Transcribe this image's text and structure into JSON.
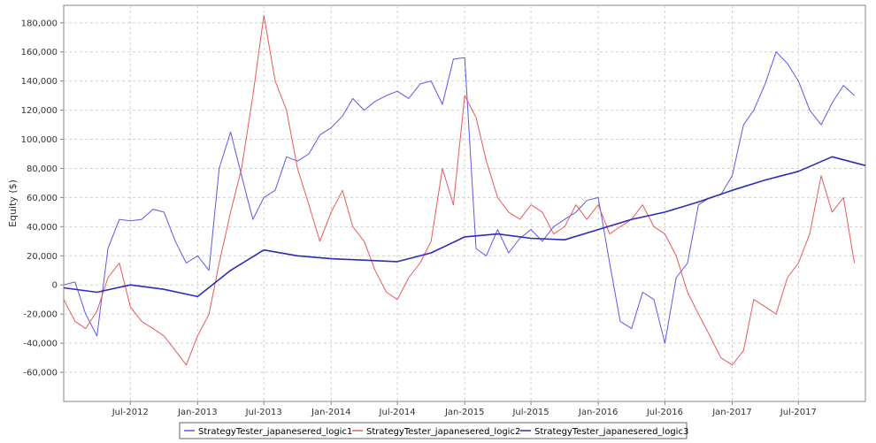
{
  "chart_data": {
    "type": "line",
    "title": "",
    "xlabel": "",
    "ylabel": "Equity ($)",
    "x_tick_labels": [
      "Jul-2012",
      "Jan-2013",
      "Jul-2013",
      "Jan-2014",
      "Jul-2014",
      "Jan-2015",
      "Jul-2015",
      "Jan-2016",
      "Jul-2016",
      "Jan-2017",
      "Jul-2017"
    ],
    "x_tick_dates": [
      "2012-07-01",
      "2013-01-01",
      "2013-07-01",
      "2014-01-01",
      "2014-07-01",
      "2015-01-01",
      "2015-07-01",
      "2016-01-01",
      "2016-07-01",
      "2017-01-01",
      "2017-07-01"
    ],
    "xlim": [
      "2012-01-01",
      "2017-12-31"
    ],
    "y_tick_labels": [
      "-60,000",
      "-40,000",
      "-20,000",
      "0",
      "20,000",
      "40,000",
      "60,000",
      "80,000",
      "100,000",
      "120,000",
      "140,000",
      "160,000",
      "180,000"
    ],
    "y_ticks": [
      -60000,
      -40000,
      -20000,
      0,
      20000,
      40000,
      60000,
      80000,
      100000,
      120000,
      140000,
      160000,
      180000
    ],
    "ylim": [
      -80000,
      192000
    ],
    "grid": true,
    "legend_position": "bottom",
    "series": [
      {
        "name": "StrategyTester_japanesered_logic1",
        "color": "#5a5ae6",
        "x": [
          "2012-01-01",
          "2012-02-01",
          "2012-03-01",
          "2012-04-01",
          "2012-05-01",
          "2012-06-01",
          "2012-07-01",
          "2012-08-01",
          "2012-09-01",
          "2012-10-01",
          "2012-11-01",
          "2012-12-01",
          "2013-01-01",
          "2013-02-01",
          "2013-03-01",
          "2013-04-01",
          "2013-05-01",
          "2013-06-01",
          "2013-07-01",
          "2013-08-01",
          "2013-09-01",
          "2013-10-01",
          "2013-11-01",
          "2013-12-01",
          "2014-01-01",
          "2014-02-01",
          "2014-03-01",
          "2014-04-01",
          "2014-05-01",
          "2014-06-01",
          "2014-07-01",
          "2014-08-01",
          "2014-09-01",
          "2014-10-01",
          "2014-11-01",
          "2014-12-01",
          "2015-01-01",
          "2015-02-01",
          "2015-03-01",
          "2015-04-01",
          "2015-05-01",
          "2015-06-01",
          "2015-07-01",
          "2015-08-01",
          "2015-09-01",
          "2015-10-01",
          "2015-11-01",
          "2015-12-01",
          "2016-01-01",
          "2016-02-01",
          "2016-03-01",
          "2016-04-01",
          "2016-05-01",
          "2016-06-01",
          "2016-07-01",
          "2016-08-01",
          "2016-09-01",
          "2016-10-01",
          "2016-11-01",
          "2016-12-01",
          "2017-01-01",
          "2017-02-01",
          "2017-03-01",
          "2017-04-01",
          "2017-05-01",
          "2017-06-01",
          "2017-07-01",
          "2017-08-01",
          "2017-09-01",
          "2017-10-01",
          "2017-11-01",
          "2017-12-01"
        ],
        "values": [
          0,
          2000,
          -20000,
          -35000,
          25000,
          45000,
          44000,
          45000,
          52000,
          50000,
          30000,
          15000,
          20000,
          10000,
          80000,
          105000,
          75000,
          45000,
          60000,
          65000,
          88000,
          85000,
          90000,
          103000,
          108000,
          116000,
          128000,
          120000,
          126000,
          130000,
          133000,
          128000,
          138000,
          140000,
          124000,
          155000,
          156000,
          25000,
          20000,
          38000,
          22000,
          32000,
          38000,
          30000,
          40000,
          45000,
          50000,
          58000,
          60000,
          15000,
          -25000,
          -30000,
          -5000,
          -10000,
          -40000,
          5000,
          15000,
          55000,
          60000,
          62000,
          75000,
          110000,
          120000,
          138000,
          160000,
          152000,
          140000,
          120000,
          110000,
          125000,
          137000,
          130000
        ]
      },
      {
        "name": "StrategyTester_japanesered_logic2",
        "color": "#e85a5a",
        "x": [
          "2012-01-01",
          "2012-02-01",
          "2012-03-01",
          "2012-04-01",
          "2012-05-01",
          "2012-06-01",
          "2012-07-01",
          "2012-08-01",
          "2012-09-01",
          "2012-10-01",
          "2012-11-01",
          "2012-12-01",
          "2013-01-01",
          "2013-02-01",
          "2013-03-01",
          "2013-04-01",
          "2013-05-01",
          "2013-06-01",
          "2013-07-01",
          "2013-08-01",
          "2013-09-01",
          "2013-10-01",
          "2013-11-01",
          "2013-12-01",
          "2014-01-01",
          "2014-02-01",
          "2014-03-01",
          "2014-04-01",
          "2014-05-01",
          "2014-06-01",
          "2014-07-01",
          "2014-08-01",
          "2014-09-01",
          "2014-10-01",
          "2014-11-01",
          "2014-12-01",
          "2015-01-01",
          "2015-02-01",
          "2015-03-01",
          "2015-04-01",
          "2015-05-01",
          "2015-06-01",
          "2015-07-01",
          "2015-08-01",
          "2015-09-01",
          "2015-10-01",
          "2015-11-01",
          "2015-12-01",
          "2016-01-01",
          "2016-02-01",
          "2016-03-01",
          "2016-04-01",
          "2016-05-01",
          "2016-06-01",
          "2016-07-01",
          "2016-08-01",
          "2016-09-01",
          "2016-10-01",
          "2016-11-01",
          "2016-12-01",
          "2017-01-01",
          "2017-02-01",
          "2017-03-01",
          "2017-04-01",
          "2017-05-01",
          "2017-06-01",
          "2017-07-01",
          "2017-08-01",
          "2017-09-01",
          "2017-10-01",
          "2017-11-01",
          "2017-12-01"
        ],
        "values": [
          -10000,
          -25000,
          -30000,
          -18000,
          5000,
          15000,
          -15000,
          -25000,
          -30000,
          -35000,
          -45000,
          -55000,
          -35000,
          -20000,
          15000,
          50000,
          80000,
          130000,
          185000,
          140000,
          120000,
          80000,
          55000,
          30000,
          50000,
          65000,
          40000,
          30000,
          10000,
          -5000,
          -10000,
          5000,
          15000,
          30000,
          80000,
          55000,
          130000,
          115000,
          85000,
          60000,
          50000,
          45000,
          55000,
          50000,
          35000,
          40000,
          55000,
          45000,
          55000,
          35000,
          40000,
          45000,
          55000,
          40000,
          35000,
          20000,
          -5000,
          -20000,
          -35000,
          -50000,
          -55000,
          -45000,
          -10000,
          -15000,
          -20000,
          5000,
          15000,
          35000,
          75000,
          50000,
          60000,
          15000
        ]
      },
      {
        "name": "StrategyTester_japanesered_logic3",
        "color": "#2c2cb8",
        "x": [
          "2012-01-01",
          "2012-04-01",
          "2012-07-01",
          "2012-10-01",
          "2013-01-01",
          "2013-04-01",
          "2013-07-01",
          "2013-10-01",
          "2014-01-01",
          "2014-04-01",
          "2014-07-01",
          "2014-10-01",
          "2015-01-01",
          "2015-04-01",
          "2015-07-01",
          "2015-10-01",
          "2016-01-01",
          "2016-04-01",
          "2016-07-01",
          "2016-10-01",
          "2017-01-01",
          "2017-04-01",
          "2017-07-01",
          "2017-10-01",
          "2017-12-31"
        ],
        "values": [
          -2000,
          -5000,
          0,
          -3000,
          -8000,
          10000,
          24000,
          20000,
          18000,
          17000,
          16000,
          22000,
          33000,
          35000,
          32000,
          31000,
          38000,
          45000,
          50000,
          57000,
          65000,
          72000,
          78000,
          88000,
          82000
        ]
      }
    ]
  }
}
